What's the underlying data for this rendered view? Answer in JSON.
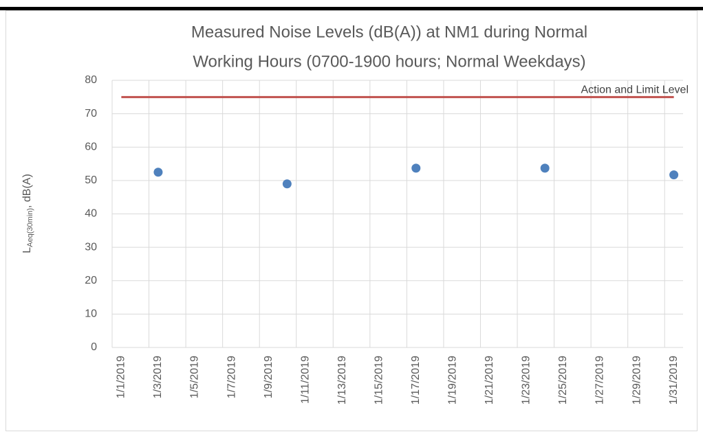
{
  "chart_data": {
    "type": "scatter",
    "title": [
      "Measured Noise Levels (dB(A)) at NM1 during Normal",
      "Working Hours (0700-1900 hours; Normal Weekdays)"
    ],
    "ylabel": {
      "main": "L",
      "sub": "Aeq(30min)",
      "rest": ", dB(A)"
    },
    "categories": [
      "1/1/2019",
      null,
      "1/3/2019",
      null,
      "1/5/2019",
      null,
      "1/7/2019",
      null,
      "1/9/2019",
      null,
      "1/11/2019",
      null,
      "1/13/2019",
      null,
      "1/15/2019",
      null,
      "1/17/2019",
      null,
      "1/19/2019",
      null,
      "1/21/2019",
      null,
      "1/23/2019",
      null,
      "1/25/2019",
      null,
      "1/27/2019",
      null,
      "1/29/2019",
      null,
      "1/31/2019"
    ],
    "series": [
      {
        "name": "Action and Limit Level",
        "type": "line",
        "color": "#c0504d",
        "values": [
          75,
          75,
          75,
          75,
          75,
          75,
          75,
          75,
          75,
          75,
          75,
          75,
          75,
          75,
          75,
          75,
          75,
          75,
          75,
          75,
          75,
          75,
          75,
          75,
          75,
          75,
          75,
          75,
          75,
          75,
          75
        ]
      },
      {
        "type": "scatter",
        "color": "#4f81bd",
        "values": [
          null,
          null,
          52.5,
          null,
          null,
          null,
          null,
          null,
          null,
          49,
          null,
          null,
          null,
          null,
          null,
          null,
          53.7,
          null,
          null,
          null,
          null,
          null,
          null,
          53.7,
          null,
          null,
          null,
          null,
          null,
          null,
          51.7
        ]
      }
    ],
    "ylim": [
      0,
      80
    ],
    "yticks": [
      0,
      10,
      20,
      30,
      40,
      50,
      60,
      70,
      80
    ],
    "grid": true
  }
}
